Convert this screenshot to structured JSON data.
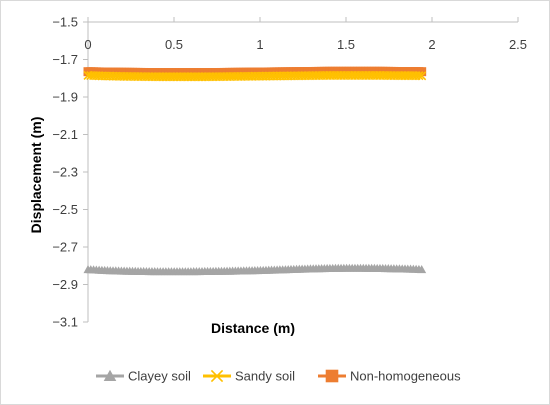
{
  "chart_data": {
    "type": "line",
    "xlabel": "Distance (m)",
    "ylabel": "Displacement (m)",
    "xlim": [
      0,
      2.5
    ],
    "ylim": [
      -3.1,
      -1.5
    ],
    "x_ticks": [
      0,
      0.5,
      1,
      1.5,
      2,
      2.5
    ],
    "x_tick_labels": [
      "0",
      "0.5",
      "1",
      "1.5",
      "2",
      "2.5"
    ],
    "y_ticks": [
      -1.5,
      -1.7,
      -1.9,
      -2.1,
      -2.3,
      -2.5,
      -2.7,
      -2.9,
      -3.1
    ],
    "y_tick_labels": [
      "−1.5",
      "−1.7",
      "−1.9",
      "−2.1",
      "−2.3",
      "−2.5",
      "−2.7",
      "−2.9",
      "−3.1"
    ],
    "grid": false,
    "legend_position": "bottom",
    "x": [
      0,
      0.1,
      0.2,
      0.3,
      0.4,
      0.5,
      0.6,
      0.7,
      0.8,
      0.9,
      1.0,
      1.1,
      1.2,
      1.3,
      1.4,
      1.5,
      1.6,
      1.7,
      1.8,
      1.9,
      1.94
    ],
    "series": [
      {
        "name": "Clayey soil",
        "color": "#a5a5a5",
        "marker": "triangle",
        "values": [
          -2.82,
          -2.825,
          -2.828,
          -2.83,
          -2.831,
          -2.831,
          -2.831,
          -2.83,
          -2.829,
          -2.827,
          -2.825,
          -2.822,
          -2.819,
          -2.816,
          -2.814,
          -2.813,
          -2.813,
          -2.814,
          -2.816,
          -2.818,
          -2.82
        ]
      },
      {
        "name": "Sandy soil",
        "color": "#ffc000",
        "marker": "x",
        "values": [
          -1.785,
          -1.788,
          -1.79,
          -1.791,
          -1.792,
          -1.792,
          -1.792,
          -1.792,
          -1.791,
          -1.79,
          -1.789,
          -1.788,
          -1.787,
          -1.786,
          -1.785,
          -1.785,
          -1.785,
          -1.785,
          -1.786,
          -1.786,
          -1.787
        ]
      },
      {
        "name": "Non-homogeneous",
        "color": "#ed7d31",
        "marker": "square",
        "values": [
          -1.765,
          -1.767,
          -1.768,
          -1.769,
          -1.77,
          -1.77,
          -1.77,
          -1.77,
          -1.769,
          -1.768,
          -1.767,
          -1.766,
          -1.765,
          -1.764,
          -1.763,
          -1.763,
          -1.763,
          -1.763,
          -1.764,
          -1.764,
          -1.765
        ]
      }
    ]
  }
}
